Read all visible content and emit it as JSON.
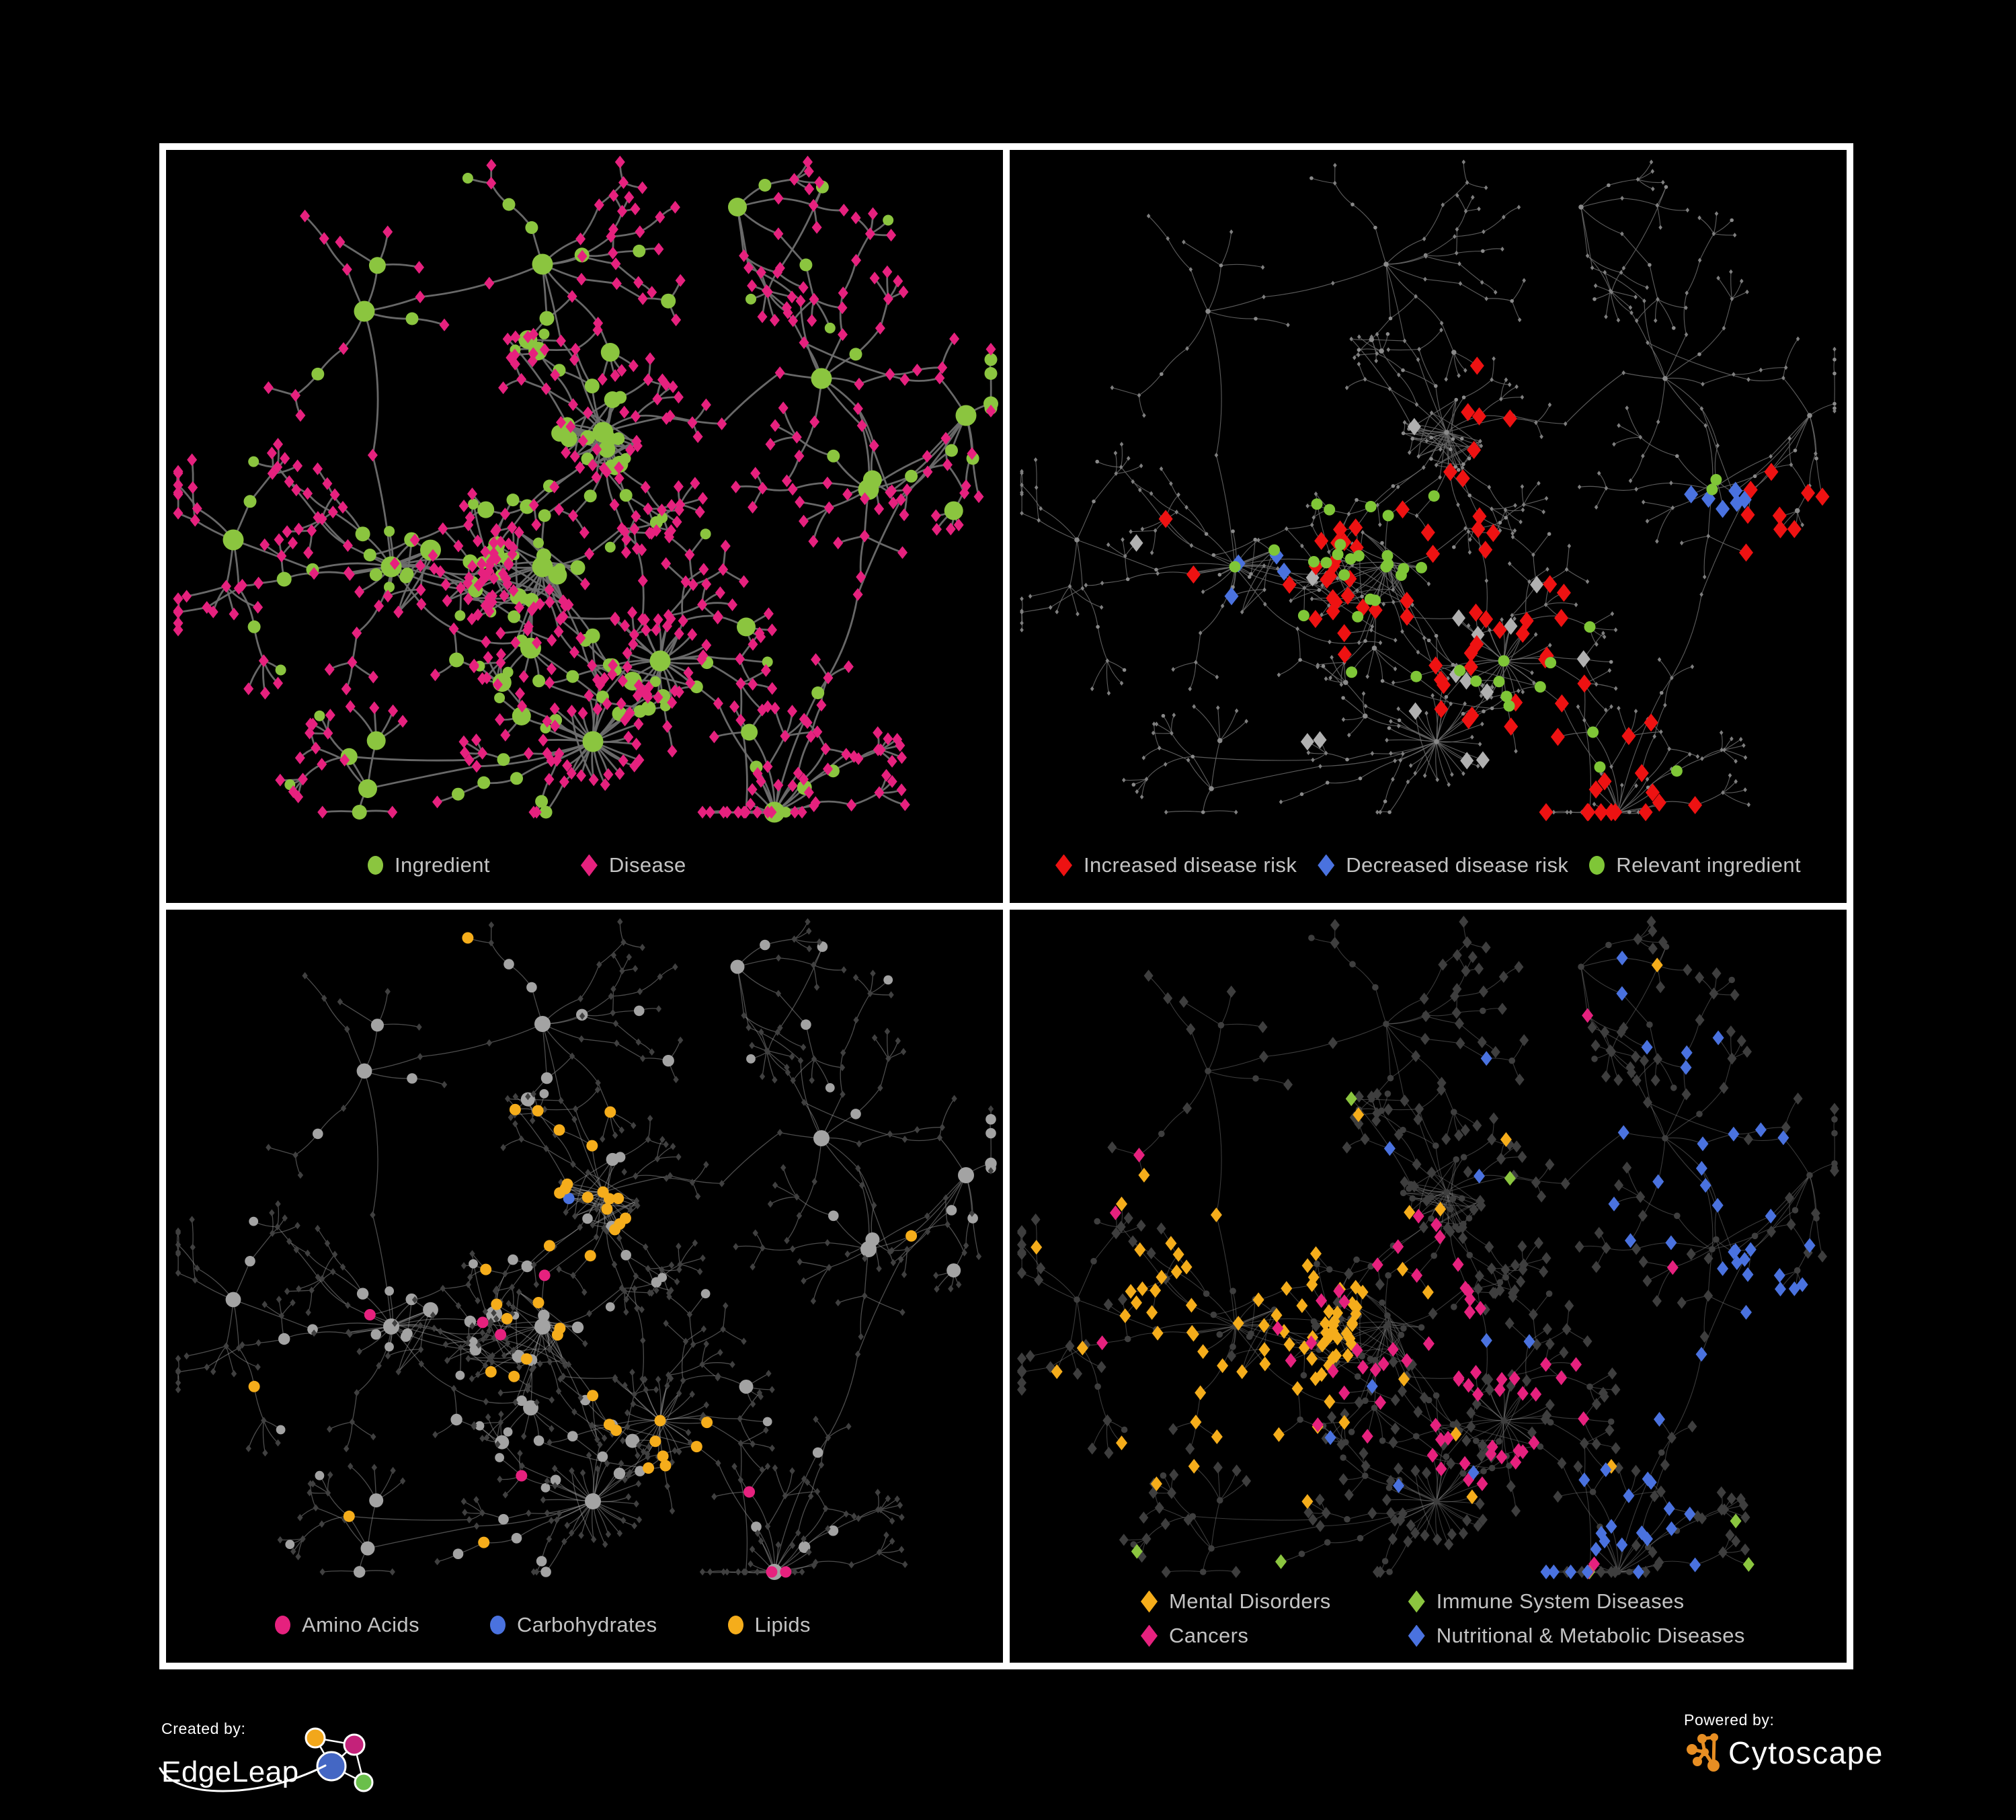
{
  "ui": {
    "page_background": "#000000",
    "panel_background": "#000000",
    "panel_border_color": "#ffffff",
    "legend_text_color": "#c3c3c3"
  },
  "branding": {
    "created_by_label": "Created by:",
    "created_by_name": "EdgeLeap",
    "powered_by_label": "Powered by:",
    "powered_by_name": "Cytoscape",
    "colors": {
      "cytoscape_orange": "#E78E23",
      "edgeleap_orange": "#F2A71B",
      "edgeleap_pink": "#C4227A",
      "edgeleap_blue": "#4467C4",
      "edgeleap_green": "#6ABF4B",
      "logo_line_white": "#ffffff"
    }
  },
  "panels": [
    {
      "id": "ingredient-disease",
      "legend": [
        {
          "label": "Ingredient",
          "shape": "circle",
          "color": "#8BC53F"
        },
        {
          "label": "Disease",
          "shape": "diamond",
          "color": "#E6217E"
        }
      ],
      "style": {
        "edge_color": "#6E6E6E",
        "edge_width": 2.8,
        "edge_opacity": 0.95,
        "circle_color": "#8BC53F",
        "diamond_color": "#E6217E"
      }
    },
    {
      "id": "disease-risk",
      "legend": [
        {
          "label": "Increased disease risk",
          "shape": "diamond",
          "color": "#EE1212"
        },
        {
          "label": "Decreased disease risk",
          "shape": "diamond",
          "color": "#4A72DF"
        },
        {
          "label": "Relevant ingredient",
          "shape": "circle",
          "color": "#7FC637"
        }
      ],
      "extra_category": {
        "label": "unlabeled neutral",
        "shape": "diamond",
        "color": "#B0B0B0"
      },
      "style": {
        "edge_color": "#6A6A6A",
        "edge_width": 1.15,
        "edge_opacity": 0.85,
        "circle_color": "#8A8A8A",
        "diamond_color": "#7F7F7F"
      }
    },
    {
      "id": "ingredient-classes",
      "legend": [
        {
          "label": "Amino Acids",
          "shape": "circle",
          "color": "#E6217E"
        },
        {
          "label": "Carbohydrates",
          "shape": "circle",
          "color": "#4A72DF"
        },
        {
          "label": "Lipids",
          "shape": "circle",
          "color": "#F5AD1B"
        }
      ],
      "style": {
        "edge_color": "#989898",
        "edge_width": 1.3,
        "edge_opacity": 0.5,
        "circle_color": "#A3A3A3",
        "diamond_color": "#404040"
      }
    },
    {
      "id": "disease-categories",
      "legend": [
        {
          "label": "Mental Disorders",
          "shape": "diamond",
          "color": "#F5AD1B"
        },
        {
          "label": "Immune System Diseases",
          "shape": "diamond",
          "color": "#8BC53F"
        },
        {
          "label": "Cancers",
          "shape": "diamond",
          "color": "#E6217E"
        },
        {
          "label": "Nutritional & Metabolic Diseases",
          "shape": "diamond",
          "color": "#4A72DF"
        }
      ],
      "style": {
        "edge_color": "#8A8A8A",
        "edge_width": 1.1,
        "edge_opacity": 0.42,
        "circle_color": "#3E3E3E",
        "diamond_color": "#3E3E3E"
      }
    }
  ],
  "chart_data": {
    "type": "network",
    "title": "",
    "description": "Four views of the same ingredient–disease association network on a black background. Circles represent ingredients, diamonds represent diseases; gray lines are association edges.",
    "node_shape_meaning": {
      "circle": "Ingredient",
      "diamond": "Disease"
    },
    "panels": [
      {
        "position": "top-left",
        "highlighted": [
          "Ingredient (green circles)",
          "Disease (pink diamonds)"
        ]
      },
      {
        "position": "top-right",
        "highlighted": [
          "Increased disease risk (red diamonds)",
          "Decreased disease risk (blue diamonds)",
          "Relevant ingredient (green circles)",
          "neutral gray diamonds (unlabeled)"
        ]
      },
      {
        "position": "bottom-left",
        "highlighted": [
          "Amino Acids (pink circles)",
          "Carbohydrates (blue circles)",
          "Lipids (yellow circles)"
        ]
      },
      {
        "position": "bottom-right",
        "highlighted": [
          "Mental Disorders (amber diamonds)",
          "Immune System Diseases (green diamonds)",
          "Cancers (pink diamonds)",
          "Nutritional & Metabolic Diseases (blue diamonds)"
        ]
      }
    ],
    "legend_position": "bottom of each panel"
  }
}
